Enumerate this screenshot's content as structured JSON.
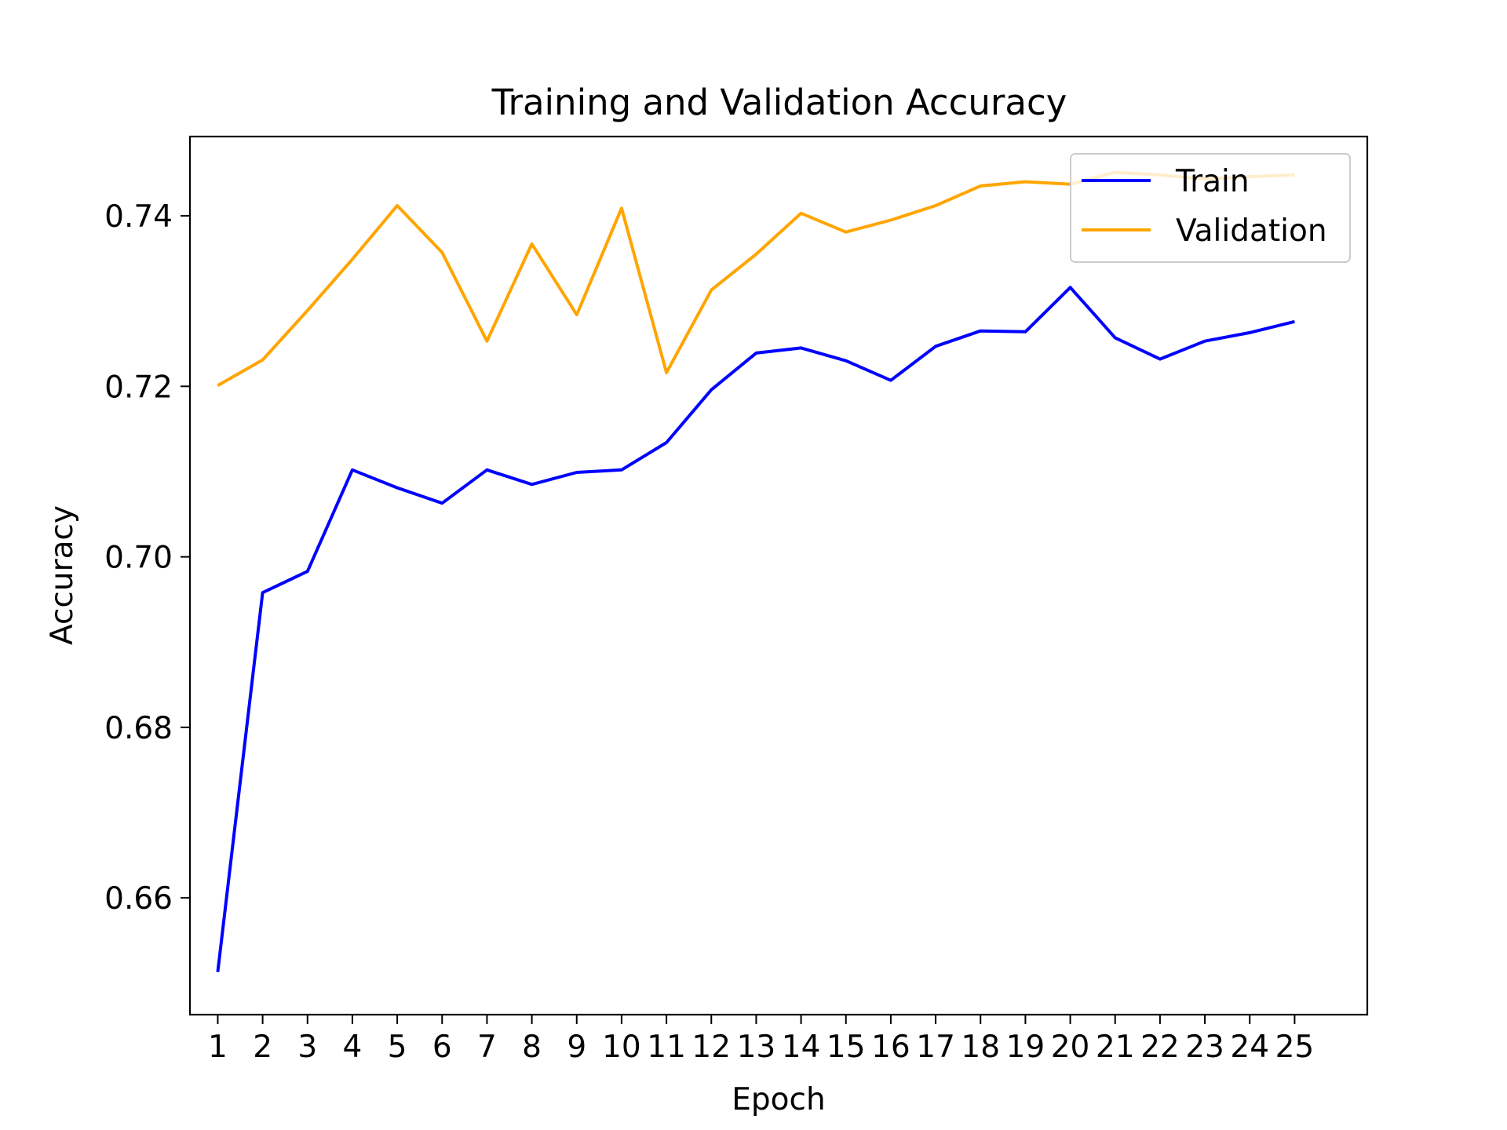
{
  "chart_data": {
    "type": "line",
    "title": "Training and Validation Accuracy",
    "xlabel": "Epoch",
    "ylabel": "Accuracy",
    "x": [
      1,
      2,
      3,
      4,
      5,
      6,
      7,
      8,
      9,
      10,
      11,
      12,
      13,
      14,
      15,
      16,
      17,
      18,
      19,
      20,
      21,
      22,
      23,
      24,
      25
    ],
    "xticks": [
      "1",
      "2",
      "3",
      "4",
      "5",
      "6",
      "7",
      "8",
      "9",
      "10",
      "11",
      "12",
      "13",
      "14",
      "15",
      "16",
      "17",
      "18",
      "19",
      "20",
      "21",
      "22",
      "23",
      "24",
      "25"
    ],
    "ylim": [
      0.6463,
      0.7493
    ],
    "yticks": [
      0.66,
      0.68,
      0.7,
      0.72,
      0.74
    ],
    "ytick_labels": [
      "0.66",
      "0.68",
      "0.70",
      "0.72",
      "0.74"
    ],
    "grid": false,
    "legend_position": "top-right",
    "series": [
      {
        "name": "Train",
        "color": "#0000ff",
        "values": [
          0.6513,
          0.6958,
          0.6983,
          0.7102,
          0.7081,
          0.7063,
          0.7102,
          0.7085,
          0.7099,
          0.7102,
          0.7134,
          0.7196,
          0.7239,
          0.7245,
          0.723,
          0.7207,
          0.7247,
          0.7265,
          0.7264,
          0.7316,
          0.7257,
          0.7232,
          0.7253,
          0.7263,
          0.7276
        ]
      },
      {
        "name": "Validation",
        "color": "#ffa500",
        "values": [
          0.7201,
          0.7231,
          0.7289,
          0.7349,
          0.7412,
          0.7357,
          0.7253,
          0.7367,
          0.7284,
          0.7409,
          0.7216,
          0.7313,
          0.7355,
          0.7403,
          0.7381,
          0.7395,
          0.7412,
          0.7435,
          0.744,
          0.7437,
          0.7451,
          0.7448,
          0.7443,
          0.7446,
          0.7448
        ]
      }
    ]
  }
}
